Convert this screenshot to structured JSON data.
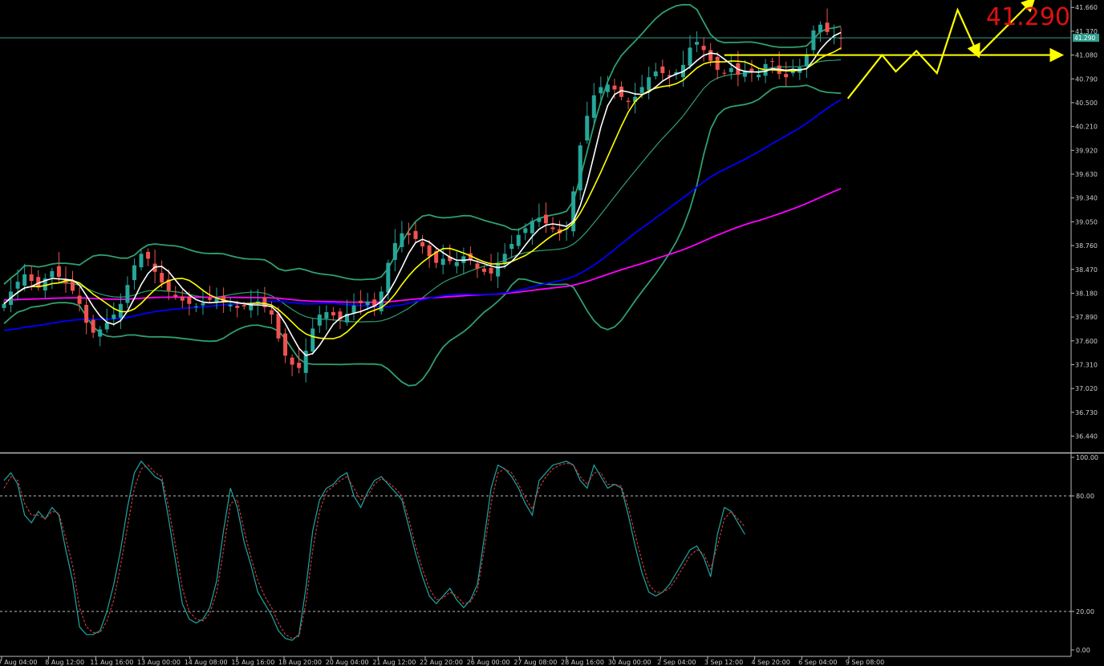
{
  "current_price_label": "41.290",
  "current_price_tag": "41.290",
  "chart_data": [
    {
      "type": "candlestick",
      "panel": "main",
      "price_axis": {
        "ticks": [
          "41.660",
          "41.370",
          "41.080",
          "40.790",
          "40.500",
          "40.210",
          "39.920",
          "39.630",
          "39.340",
          "39.050",
          "38.760",
          "38.470",
          "38.180",
          "37.890",
          "37.600",
          "37.310",
          "37.020",
          "36.730",
          "36.440"
        ],
        "range": [
          36.25,
          41.75
        ]
      },
      "current_price": 41.29,
      "close": [
        38.05,
        38.2,
        38.32,
        38.41,
        38.33,
        38.25,
        38.36,
        38.45,
        38.38,
        38.3,
        38.21,
        38.05,
        37.82,
        37.7,
        37.74,
        37.82,
        37.92,
        38.05,
        38.28,
        38.52,
        38.66,
        38.6,
        38.44,
        38.31,
        38.21,
        38.14,
        38.09,
        38.05,
        38.02,
        38.06,
        38.1,
        38.12,
        38.08,
        38.04,
        38.0,
        38.02,
        38.05,
        38.08,
        38.01,
        37.92,
        37.63,
        37.42,
        37.31,
        37.27,
        37.48,
        37.75,
        37.92,
        37.95,
        37.91,
        37.86,
        37.93,
        38.03,
        38.06,
        38.08,
        38.02,
        38.2,
        38.55,
        38.79,
        38.91,
        38.89,
        38.84,
        38.75,
        38.63,
        38.55,
        38.6,
        38.57,
        38.56,
        38.63,
        38.59,
        38.48,
        38.44,
        38.42,
        38.53,
        38.66,
        38.78,
        38.89,
        38.97,
        39.06,
        39.1,
        39.03,
        38.96,
        38.91,
        38.97,
        39.42,
        39.98,
        40.34,
        40.59,
        40.69,
        40.72,
        40.66,
        40.57,
        40.51,
        40.57,
        40.69,
        40.81,
        40.88,
        40.86,
        40.82,
        40.87,
        40.96,
        41.17,
        41.24,
        41.14,
        41.01,
        40.9,
        40.86,
        40.92,
        40.84,
        40.89,
        40.87,
        40.84,
        40.97,
        41.0,
        40.85,
        40.81,
        40.9,
        40.93,
        41.08,
        41.38,
        41.45,
        41.36,
        41.3,
        41.28
      ],
      "overlays": [
        {
          "name": "ma_fast",
          "color": "#ffffff"
        },
        {
          "name": "ma_slow",
          "color": "#ffff00"
        },
        {
          "name": "ma_50",
          "color": "#0000ff"
        },
        {
          "name": "ma_100",
          "color": "#ff00ff"
        },
        {
          "name": "bollinger",
          "color": "#2f9f6f"
        }
      ],
      "bull_color": "#26a69a",
      "bear_color": "#ef5350",
      "annotations": [
        {
          "kind": "horizontal_line",
          "value": 41.08,
          "color": "#ffff00"
        },
        {
          "kind": "zigzag",
          "color": "#ffff00",
          "points": [
            [
              123,
              40.55
            ],
            [
              128,
              41.08
            ],
            [
              130,
              40.88
            ],
            [
              133,
              41.13
            ],
            [
              136,
              40.86
            ],
            [
              139,
              41.63
            ],
            [
              142,
              41.08
            ]
          ]
        },
        {
          "kind": "arrow",
          "color": "#ffff00",
          "from": [
            142,
            41.08
          ],
          "to": [
            150,
            41.75
          ]
        },
        {
          "kind": "arrow",
          "color": "#ffff00",
          "from": [
            142,
            41.08
          ],
          "to": [
            154,
            41.08
          ]
        }
      ]
    },
    {
      "type": "line",
      "panel": "oscillator",
      "range": [
        0,
        100
      ],
      "ticks": [
        "100.00",
        "80.00",
        "20.00",
        "0.00"
      ],
      "levels": [
        80,
        20
      ],
      "series": [
        {
          "color": "#1fa7a2",
          "dash": false,
          "values": [
            88,
            92,
            86,
            70,
            66,
            72,
            68,
            74,
            70,
            52,
            36,
            12,
            8,
            8,
            10,
            20,
            34,
            52,
            74,
            92,
            98,
            94,
            90,
            88,
            68,
            46,
            24,
            16,
            14,
            16,
            22,
            36,
            62,
            84,
            74,
            56,
            44,
            30,
            24,
            18,
            10,
            6,
            5,
            8,
            32,
            62,
            78,
            84,
            86,
            90,
            92,
            80,
            74,
            82,
            88,
            90,
            86,
            82,
            78,
            64,
            50,
            38,
            28,
            24,
            28,
            32,
            26,
            22,
            26,
            34,
            58,
            84,
            96,
            94,
            90,
            84,
            76,
            70,
            88,
            92,
            96,
            97,
            98,
            96,
            88,
            84,
            96,
            90,
            84,
            86,
            84,
            70,
            54,
            40,
            30,
            28,
            30,
            34,
            40,
            46,
            52,
            54,
            48,
            38,
            60,
            74,
            72,
            66,
            60
          ]
        },
        {
          "color": "#c03a3a",
          "dash": true,
          "values": [
            84,
            90,
            88,
            76,
            70,
            70,
            68,
            72,
            71,
            58,
            44,
            22,
            12,
            9,
            9,
            15,
            26,
            44,
            64,
            84,
            94,
            96,
            92,
            90,
            74,
            54,
            32,
            20,
            16,
            15,
            19,
            30,
            52,
            76,
            78,
            62,
            48,
            36,
            28,
            22,
            14,
            8,
            6,
            7,
            24,
            52,
            72,
            82,
            85,
            88,
            90,
            84,
            78,
            80,
            86,
            89,
            87,
            84,
            80,
            68,
            54,
            42,
            32,
            26,
            27,
            30,
            28,
            24,
            25,
            31,
            52,
            76,
            92,
            94,
            92,
            86,
            79,
            73,
            84,
            90,
            94,
            96,
            97,
            96,
            90,
            86,
            92,
            92,
            86,
            86,
            85,
            74,
            60,
            46,
            34,
            30,
            30,
            32,
            37,
            43,
            49,
            52,
            50,
            42,
            54,
            68,
            72,
            68,
            64
          ]
        }
      ]
    }
  ],
  "time_axis": [
    "7 Aug 04:00",
    "8 Aug 12:00",
    "11 Aug 16:00",
    "13 Aug 00:00",
    "14 Aug 08:00",
    "15 Aug 16:00",
    "18 Aug 20:00",
    "20 Aug 04:00",
    "21 Aug 12:00",
    "22 Aug 20:00",
    "26 Aug 00:00",
    "27 Aug 08:00",
    "28 Aug 16:00",
    "30 Aug 00:00",
    "2 Sep 04:00",
    "3 Sep 12:00",
    "4 Sep 20:00",
    "6 Sep 04:00",
    "9 Sep 08:00"
  ]
}
